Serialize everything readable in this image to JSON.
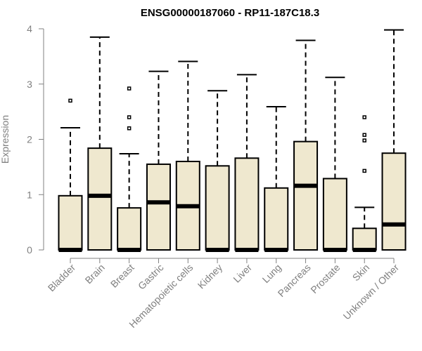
{
  "chart_data": {
    "type": "boxplot",
    "title": "ENSG00000187060 - RP11-187C18.3",
    "xlabel": "",
    "ylabel": "Expression",
    "ylim": [
      0,
      4
    ],
    "yticks": [
      0,
      1,
      2,
      3,
      4
    ],
    "box_color": "#efe8cf",
    "categories": [
      "Bladder",
      "Brain",
      "Breast",
      "Gastric",
      "Hematopoietic cells",
      "Kidney",
      "Liver",
      "Lung",
      "Pancreas",
      "Prostate",
      "Skin",
      "Unknown / Other"
    ],
    "series": [
      {
        "name": "Bladder",
        "min": 0,
        "q1": 0,
        "median": 0,
        "q3": 0.98,
        "max": 2.21,
        "outliers": [
          2.7
        ]
      },
      {
        "name": "Brain",
        "min": 0,
        "q1": 0,
        "median": 0.98,
        "q3": 1.84,
        "max": 3.85,
        "outliers": []
      },
      {
        "name": "Breast",
        "min": 0,
        "q1": 0,
        "median": 0,
        "q3": 0.76,
        "max": 1.74,
        "outliers": [
          2.2,
          2.4,
          2.92
        ]
      },
      {
        "name": "Gastric",
        "min": 0,
        "q1": 0,
        "median": 0.86,
        "q3": 1.55,
        "max": 3.23,
        "outliers": []
      },
      {
        "name": "Hematopoietic cells",
        "min": 0,
        "q1": 0,
        "median": 0.79,
        "q3": 1.6,
        "max": 3.41,
        "outliers": []
      },
      {
        "name": "Kidney",
        "min": 0,
        "q1": 0,
        "median": 0,
        "q3": 1.52,
        "max": 2.88,
        "outliers": []
      },
      {
        "name": "Liver",
        "min": 0,
        "q1": 0,
        "median": 0,
        "q3": 1.66,
        "max": 3.17,
        "outliers": []
      },
      {
        "name": "Lung",
        "min": 0,
        "q1": 0,
        "median": 0,
        "q3": 1.12,
        "max": 2.59,
        "outliers": []
      },
      {
        "name": "Pancreas",
        "min": 0,
        "q1": 0,
        "median": 1.16,
        "q3": 1.96,
        "max": 3.79,
        "outliers": []
      },
      {
        "name": "Prostate",
        "min": 0,
        "q1": 0,
        "median": 0,
        "q3": 1.29,
        "max": 3.12,
        "outliers": []
      },
      {
        "name": "Skin",
        "min": 0,
        "q1": 0,
        "median": 0,
        "q3": 0.39,
        "max": 0.77,
        "outliers": [
          1.43,
          1.98,
          2.08,
          2.4
        ]
      },
      {
        "name": "Unknown / Other",
        "min": 0,
        "q1": 0,
        "median": 0.46,
        "q3": 1.75,
        "max": 3.98,
        "outliers": []
      }
    ]
  }
}
